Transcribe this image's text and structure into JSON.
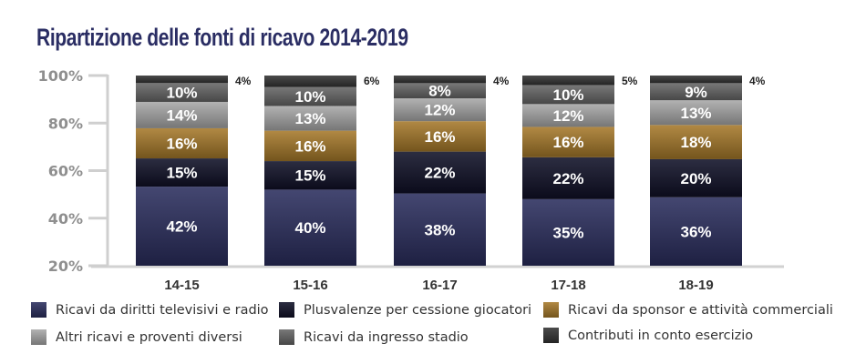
{
  "chart_data": {
    "type": "bar",
    "stacked": true,
    "title": "Ripartizione delle fonti di ricavo 2014-2019",
    "xlabel": "",
    "ylabel": "",
    "ylim": [
      20,
      100
    ],
    "yticks": [
      "20%",
      "40%",
      "60%",
      "80%",
      "100%"
    ],
    "categories": [
      "14-15",
      "15-16",
      "16-17",
      "17-18",
      "18-19"
    ],
    "series": [
      {
        "name": "Ricavi da diritti televisivi e radio",
        "color": "#2b2e5e",
        "values": [
          42,
          40,
          38,
          35,
          36
        ]
      },
      {
        "name": "Plusvalenze per cessione giocatori",
        "color": "#0f1027",
        "values": [
          15,
          15,
          22,
          22,
          20
        ]
      },
      {
        "name": "Ricavi da sponsor e attività commerciali",
        "color": "#a6792a",
        "values": [
          16,
          16,
          16,
          16,
          18
        ]
      },
      {
        "name": "Altri ricavi e proventi diversi",
        "color": "#a8a8a8",
        "values": [
          14,
          13,
          12,
          12,
          13
        ]
      },
      {
        "name": "Ricavi da ingresso stadio",
        "color": "#666666",
        "values": [
          10,
          10,
          8,
          10,
          9
        ]
      },
      {
        "name": "Contributi in conto esercizio",
        "color": "#333333",
        "values": [
          4,
          6,
          4,
          5,
          4
        ]
      }
    ],
    "legend_position": "bottom",
    "grid": false
  },
  "legend": {
    "items": [
      {
        "label": "Ricavi da diritti televisivi e radio",
        "color": "#2b2e5e"
      },
      {
        "label": "Plusvalenze per cessione giocatori",
        "color": "#0f1027"
      },
      {
        "label": "Ricavi da sponsor e attività commerciali",
        "color": "#a6792a"
      },
      {
        "label": "Altri ricavi e proventi diversi",
        "color": "#a8a8a8"
      },
      {
        "label": "Ricavi da ingresso stadio",
        "color": "#666666"
      },
      {
        "label": "Contributi in conto esercizio",
        "color": "#333333"
      }
    ]
  }
}
